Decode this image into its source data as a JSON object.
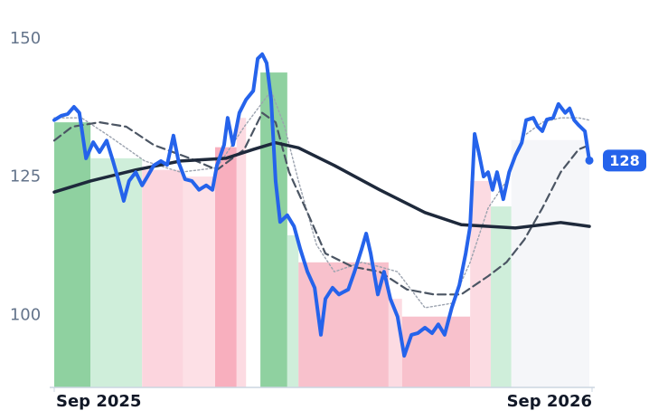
{
  "chart_data": {
    "type": "line",
    "xlim": [
      0,
      12
    ],
    "ylim": [
      87,
      157
    ],
    "xticks": [
      {
        "value": 0,
        "label": "Sep 2025"
      },
      {
        "value": 12,
        "label": "Sep 2026"
      }
    ],
    "yticks": [
      100,
      125,
      150
    ],
    "bands": [
      {
        "start": 0,
        "end": 0.81,
        "value": 134.9,
        "color": "#8fd1a0"
      },
      {
        "start": 0.81,
        "end": 1.96,
        "value": 128.4,
        "color": "#cfeeda"
      },
      {
        "start": 1.96,
        "end": 2.88,
        "value": 126.3,
        "color": "#fcd5de"
      },
      {
        "start": 2.88,
        "end": 3.59,
        "value": 125.1,
        "color": "#fde0e6"
      },
      {
        "start": 3.59,
        "end": 4.07,
        "value": 130.4,
        "color": "#f8afbe"
      },
      {
        "start": 4.07,
        "end": 4.28,
        "value": 135.7,
        "color": "#fcdbe2"
      },
      {
        "start": 4.6,
        "end": 5.2,
        "value": 143.9,
        "color": "#8fd1a0"
      },
      {
        "start": 5.2,
        "end": 5.45,
        "value": 114.5,
        "color": "#cfeeda"
      },
      {
        "start": 5.45,
        "end": 7.46,
        "value": 109.6,
        "color": "#f8c1cc"
      },
      {
        "start": 7.46,
        "end": 7.76,
        "value": 103.0,
        "color": "#fcdbe2"
      },
      {
        "start": 7.76,
        "end": 9.28,
        "value": 99.8,
        "color": "#f8c1cc"
      },
      {
        "start": 9.28,
        "end": 9.74,
        "value": 124.3,
        "color": "#fcdbe2"
      },
      {
        "start": 9.74,
        "end": 10.2,
        "value": 119.7,
        "color": "#cfeeda"
      },
      {
        "start": 10.2,
        "end": 11.94,
        "value": 131.7,
        "color": "#f5f6f9"
      }
    ],
    "series": [
      {
        "color": "#9ca3af",
        "style": "dotted",
        "x": [
          0,
          0.61,
          1.21,
          2.02,
          2.82,
          3.63,
          4.24,
          4.84,
          5.14,
          5.45,
          5.85,
          6.25,
          6.86,
          7.26,
          7.66,
          8.27,
          8.87,
          9.28,
          9.68,
          10.09,
          10.49,
          10.89,
          11.3,
          11.7,
          11.94
        ],
        "values": [
          135.7,
          135.7,
          132.5,
          127.9,
          125.9,
          126.7,
          134.1,
          140.6,
          134.1,
          124.3,
          112.8,
          107.9,
          109.6,
          108.8,
          107.9,
          101.4,
          102.2,
          109.6,
          119.4,
          124.3,
          132.5,
          134.9,
          135.7,
          135.7,
          135.3
        ]
      },
      {
        "color": "#4b5563",
        "style": "dashed",
        "x": [
          0,
          0.4,
          1.01,
          1.61,
          2.22,
          3.03,
          3.63,
          4.24,
          4.64,
          4.94,
          5.24,
          5.65,
          6.05,
          6.66,
          7.26,
          7.87,
          8.47,
          9.08,
          9.68,
          10.09,
          10.49,
          10.89,
          11.3,
          11.7,
          11.94
        ],
        "values": [
          131.6,
          134.1,
          134.9,
          134.1,
          130.8,
          128.4,
          126.3,
          130,
          136.6,
          134.9,
          125.9,
          118.6,
          111.2,
          108.8,
          107.9,
          104.7,
          103.8,
          103.8,
          107.1,
          109.6,
          113.7,
          119.4,
          125.9,
          130,
          130.8
        ]
      },
      {
        "color": "#1e293b",
        "style": "solid",
        "x": [
          0,
          0.81,
          1.82,
          2.82,
          3.83,
          4.44,
          4.94,
          5.45,
          6.25,
          7.26,
          8.27,
          9.08,
          10.29,
          11.3,
          11.94
        ],
        "values": [
          122.3,
          124.3,
          126.3,
          127.9,
          128.4,
          130,
          131.2,
          130.3,
          127.1,
          122.7,
          118.6,
          116.4,
          115.8,
          116.8,
          116.1
        ]
      },
      {
        "color": "#2563eb",
        "style": "solid",
        "x": [
          0,
          0.16,
          0.3,
          0.44,
          0.56,
          0.71,
          0.87,
          1.01,
          1.17,
          1.31,
          1.41,
          1.55,
          1.67,
          1.82,
          1.96,
          2.08,
          2.22,
          2.38,
          2.52,
          2.66,
          2.78,
          2.92,
          3.07,
          3.23,
          3.39,
          3.53,
          3.63,
          3.79,
          3.87,
          3.99,
          4.13,
          4.28,
          4.44,
          4.54,
          4.64,
          4.74,
          4.84,
          4.94,
          5.04,
          5.2,
          5.35,
          5.49,
          5.65,
          5.81,
          5.95,
          6.05,
          6.21,
          6.35,
          6.56,
          6.7,
          6.86,
          6.96,
          7.06,
          7.22,
          7.36,
          7.5,
          7.66,
          7.81,
          7.97,
          8.11,
          8.27,
          8.43,
          8.57,
          8.71,
          8.87,
          9.04,
          9.18,
          9.28,
          9.38,
          9.48,
          9.58,
          9.68,
          9.78,
          9.88,
          10.02,
          10.15,
          10.29,
          10.43,
          10.53,
          10.69,
          10.79,
          10.89,
          10.99,
          11.13,
          11.25,
          11.4,
          11.5,
          11.6,
          11.7,
          11.84,
          11.94
        ],
        "values": [
          135.3,
          136.1,
          136.4,
          137.7,
          136.6,
          128.4,
          131.3,
          129.5,
          131.6,
          127.9,
          125.1,
          120.7,
          124.3,
          125.9,
          123.5,
          125.1,
          127.1,
          127.9,
          127.2,
          132.5,
          127.6,
          124.6,
          124.3,
          122.7,
          123.5,
          122.7,
          127.1,
          130.8,
          135.7,
          130.8,
          136.6,
          139,
          140.6,
          146.4,
          147.2,
          145.6,
          139,
          124.3,
          116.9,
          118.1,
          116.1,
          112,
          107.9,
          105,
          96.5,
          103,
          105,
          103.8,
          104.7,
          107.9,
          112,
          114.8,
          111.2,
          103.8,
          107.9,
          103,
          99.8,
          92.7,
          96.5,
          96.8,
          97.8,
          96.8,
          98.4,
          96.5,
          101.4,
          105.5,
          111.2,
          116.1,
          132.8,
          129.2,
          125.1,
          125.9,
          122.7,
          125.9,
          121,
          125.9,
          128.9,
          131.2,
          135.3,
          135.7,
          134.1,
          133.3,
          135.4,
          135.7,
          138.2,
          136.6,
          137.4,
          135.3,
          134.4,
          133.3,
          128
        ]
      }
    ],
    "last_value": 128
  }
}
